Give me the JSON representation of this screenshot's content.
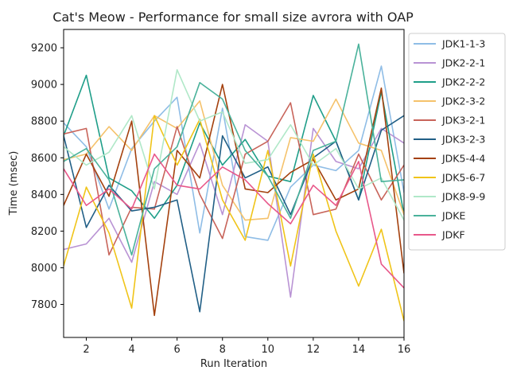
{
  "chart_data": {
    "type": "line",
    "title": "Cat's Meow - Performance for small size avrora with OAP",
    "xlabel": "Run Iteration",
    "ylabel": "Time (msec)",
    "xlim": [
      1,
      16
    ],
    "ylim": [
      7620,
      9300
    ],
    "x_ticks": [
      2,
      4,
      6,
      8,
      10,
      12,
      14,
      16
    ],
    "y_ticks": [
      7800,
      8000,
      8200,
      8400,
      8600,
      8800,
      9000,
      9200
    ],
    "grid": false,
    "legend_position": "outside-right",
    "x": [
      1,
      2,
      3,
      4,
      5,
      6,
      7,
      8,
      9,
      10,
      11,
      12,
      13,
      14,
      15,
      16
    ],
    "series": [
      {
        "name": "JDK1-1-3",
        "color": "#8fbde6",
        "values": [
          8790,
          8660,
          8320,
          8650,
          8800,
          8930,
          8190,
          8870,
          8170,
          8150,
          8440,
          8560,
          8530,
          8640,
          9100,
          8410
        ]
      },
      {
        "name": "JDK2-2-1",
        "color": "#b993d4",
        "values": [
          8100,
          8130,
          8270,
          8030,
          8470,
          8400,
          8680,
          8290,
          8780,
          8690,
          7840,
          8760,
          8580,
          8540,
          8760,
          8680
        ]
      },
      {
        "name": "JDK2-2-2",
        "color": "#1f9e89",
        "values": [
          8720,
          9050,
          8490,
          8420,
          8270,
          8450,
          8790,
          8560,
          8700,
          8500,
          8470,
          8940,
          8690,
          8370,
          8960,
          8290
        ]
      },
      {
        "name": "JDK2-3-2",
        "color": "#f5c26b",
        "values": [
          8590,
          8620,
          8770,
          8640,
          8830,
          8760,
          8910,
          8450,
          8260,
          8270,
          8710,
          8690,
          8920,
          8680,
          8640,
          8290
        ]
      },
      {
        "name": "JDK3-2-1",
        "color": "#c8645a",
        "values": [
          8730,
          8760,
          8070,
          8330,
          8320,
          8770,
          8400,
          8160,
          8620,
          8690,
          8900,
          8290,
          8320,
          8620,
          8370,
          8560
        ]
      },
      {
        "name": "JDK3-2-3",
        "color": "#215f86",
        "values": [
          8720,
          8220,
          8450,
          8310,
          8330,
          8370,
          7760,
          8720,
          8490,
          8550,
          8290,
          8600,
          8690,
          8370,
          8750,
          8830
        ]
      },
      {
        "name": "JDK5-4-4",
        "color": "#a4410e",
        "values": [
          8340,
          8620,
          8390,
          8800,
          7740,
          8640,
          8490,
          9000,
          8430,
          8410,
          8520,
          8590,
          8370,
          8430,
          8980,
          7970
        ]
      },
      {
        "name": "JDK5-6-7",
        "color": "#f0c419",
        "values": [
          8010,
          8440,
          8190,
          7780,
          8830,
          8560,
          8810,
          8370,
          8150,
          8640,
          8010,
          8620,
          8200,
          7900,
          8210,
          7710
        ]
      },
      {
        "name": "JDK8-9-9",
        "color": "#b0e8c8",
        "values": [
          8660,
          8560,
          8630,
          8830,
          8430,
          9080,
          8800,
          8850,
          8570,
          8590,
          8780,
          8560,
          8650,
          8430,
          8490,
          8260
        ]
      },
      {
        "name": "JDKE",
        "color": "#4ab29b",
        "values": [
          8580,
          8650,
          8480,
          8070,
          8540,
          8660,
          9010,
          8920,
          8640,
          8500,
          8270,
          8640,
          8690,
          9220,
          8470,
          8480
        ]
      },
      {
        "name": "JDKF",
        "color": "#e8588a",
        "values": [
          8540,
          8340,
          8430,
          8320,
          8620,
          8450,
          8430,
          8550,
          8480,
          8350,
          8240,
          8450,
          8340,
          8580,
          8020,
          7890
        ]
      }
    ]
  }
}
